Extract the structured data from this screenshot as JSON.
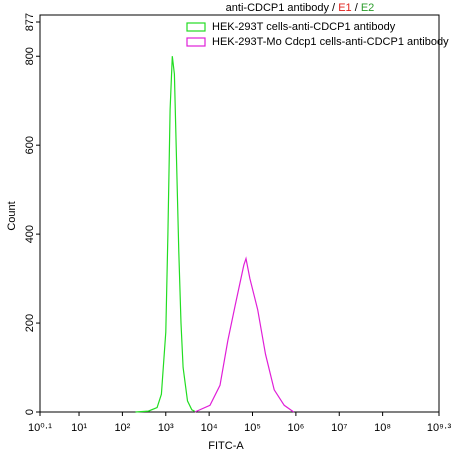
{
  "chart_data": {
    "type": "line",
    "title": [
      "anti-CDCP1 antibody /",
      "E1",
      "/",
      "E2"
    ],
    "title_colors": [
      "#000000",
      "#e0201b",
      "#000000",
      "#2a9d2a"
    ],
    "xlabel": "FITC-A",
    "ylabel": "Count",
    "xscale": "log",
    "xlim": [
      1.2589,
      1995262315
    ],
    "ylim": [
      0,
      877
    ],
    "xticks": [
      {
        "value": 1.2589,
        "label": "10⁰·¹"
      },
      {
        "value": 10,
        "label": "10¹"
      },
      {
        "value": 100,
        "label": "10²"
      },
      {
        "value": 1000,
        "label": "10³"
      },
      {
        "value": 10000,
        "label": "10⁴"
      },
      {
        "value": 100000,
        "label": "10⁵"
      },
      {
        "value": 1000000,
        "label": "10⁶"
      },
      {
        "value": 10000000,
        "label": "10⁷"
      },
      {
        "value": 100000000,
        "label": "10⁸"
      },
      {
        "value": 1995262315,
        "label": "10⁹·³"
      }
    ],
    "yticks": [
      0,
      200,
      400,
      600,
      800,
      877
    ],
    "legend": "upper right",
    "series": [
      {
        "name": "HEK-293T cells-anti-CDCP1 antibody",
        "color": "#22dd22",
        "x": [
          200,
          398,
          631,
          794,
          1000,
          1122,
          1259,
          1413,
          1585,
          1778,
          1995,
          2239,
          2512,
          3162,
          3981,
          5012
        ],
        "values": [
          0,
          2,
          10,
          40,
          180,
          400,
          680,
          800,
          760,
          560,
          360,
          200,
          100,
          25,
          5,
          0
        ]
      },
      {
        "name": "HEK-293T-Mo Cdcp1 cells-anti-CDCP1 antibody",
        "color": "#e01fd8",
        "x": [
          4677,
          10471,
          17783,
          26915,
          39811,
          63096,
          70795,
          87096,
          131826,
          199526,
          316228,
          537032,
          891251
        ],
        "values": [
          0,
          15,
          60,
          160,
          240,
          330,
          345,
          300,
          230,
          130,
          50,
          15,
          0
        ]
      }
    ]
  }
}
